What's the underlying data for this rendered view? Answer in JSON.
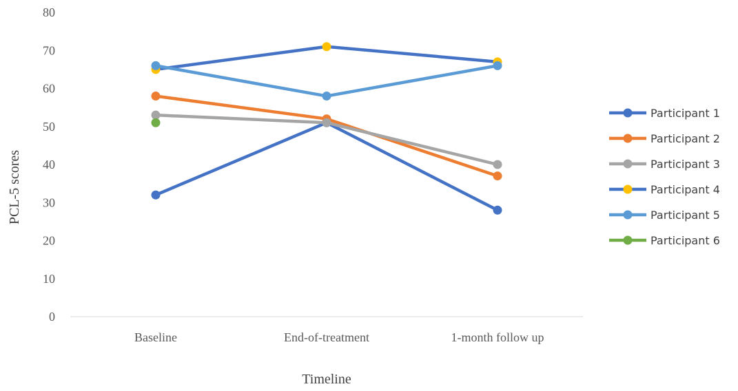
{
  "chart_data": {
    "type": "line",
    "categories": [
      "Baseline",
      "End-of-treatment",
      "1-month follow up"
    ],
    "xlabel": "Timeline",
    "ylabel": "PCL-5 scores",
    "ylim": [
      0,
      80
    ],
    "yticks": [
      0,
      10,
      20,
      30,
      40,
      50,
      60,
      70,
      80
    ],
    "grid": false,
    "legend_position": "right",
    "series": [
      {
        "name": "Participant 1",
        "color": "#4472C4",
        "values": [
          32,
          51,
          28
        ]
      },
      {
        "name": "Participant 2",
        "color": "#ED7D31",
        "values": [
          58,
          52,
          37
        ]
      },
      {
        "name": "Participant 3",
        "color": "#A5A5A5",
        "values": [
          53,
          51,
          40
        ]
      },
      {
        "name": "Participant 4",
        "color": "#FFC000",
        "line_color": "#4472C4",
        "values": [
          65,
          71,
          67
        ]
      },
      {
        "name": "Participant 5",
        "color": "#5B9BD5",
        "values": [
          66,
          58,
          66
        ]
      },
      {
        "name": "Participant 6",
        "color": "#70AD47",
        "values": [
          51,
          null,
          null
        ]
      }
    ]
  }
}
